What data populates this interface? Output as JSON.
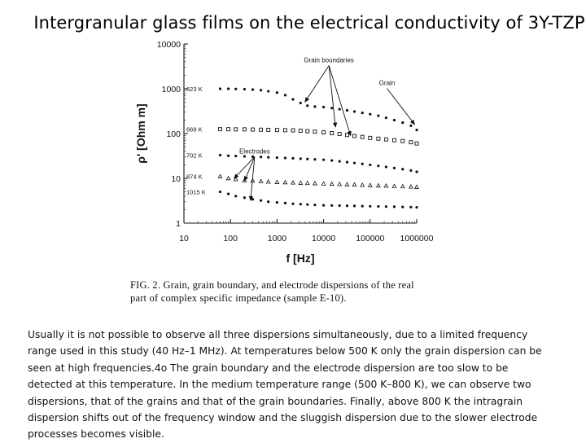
{
  "slide": {
    "title": "Intergranular glass films on the electrical conductivity of 3Y-TZP"
  },
  "figure": {
    "caption_lines": [
      "FIG. 2.  Grain, grain boundary, and electrode dispersions of the real",
      "part of complex specific impedance (sample E-10)."
    ]
  },
  "chart_data": {
    "type": "scatter",
    "xlabel": "f [Hz]",
    "ylabel": "ρ′  [Ohm m]",
    "x_scale": "log",
    "y_scale": "log",
    "xlim": [
      10,
      1000000
    ],
    "ylim": [
      1,
      10000
    ],
    "x_ticks": [
      {
        "value": 10,
        "label": "10"
      },
      {
        "value": 100,
        "label": "100"
      },
      {
        "value": 1000,
        "label": "1000"
      },
      {
        "value": 10000,
        "label": "10000"
      },
      {
        "value": 100000,
        "label": "100000"
      },
      {
        "value": 1000000,
        "label": "1000000"
      }
    ],
    "y_ticks": [
      {
        "value": 1,
        "label": "1"
      },
      {
        "value": 10,
        "label": "10"
      },
      {
        "value": 100,
        "label": "100"
      },
      {
        "value": 1000,
        "label": "1000"
      },
      {
        "value": 10000,
        "label": "10000"
      }
    ],
    "series": [
      {
        "name": "623 K",
        "marker": "dot",
        "x": [
          60,
          90,
          130,
          200,
          300,
          450,
          650,
          1000,
          1500,
          2200,
          3200,
          4500,
          6500,
          10000,
          15000,
          22000,
          32000,
          46000,
          68000,
          100000,
          150000,
          220000,
          330000,
          500000,
          750000,
          1000000
        ],
        "y": [
          1000,
          1000,
          990,
          980,
          960,
          930,
          880,
          820,
          720,
          580,
          480,
          420,
          400,
          390,
          370,
          350,
          330,
          310,
          290,
          270,
          250,
          225,
          200,
          175,
          150,
          120
        ]
      },
      {
        "name": "669 K",
        "marker": "square",
        "x": [
          60,
          90,
          130,
          200,
          300,
          450,
          650,
          1000,
          1500,
          2200,
          3200,
          4500,
          6500,
          10000,
          15000,
          22000,
          32000,
          46000,
          68000,
          100000,
          150000,
          220000,
          330000,
          500000,
          750000,
          1000000
        ],
        "y": [
          125,
          125,
          124,
          124,
          123,
          122,
          121,
          120,
          119,
          118,
          116,
          113,
          110,
          106,
          102,
          98,
          93,
          88,
          84,
          80,
          77,
          74,
          71,
          68,
          64,
          60
        ]
      },
      {
        "name": "702 K",
        "marker": "dot",
        "x": [
          60,
          90,
          130,
          200,
          300,
          450,
          650,
          1000,
          1500,
          2200,
          3200,
          4500,
          6500,
          10000,
          15000,
          22000,
          32000,
          46000,
          68000,
          100000,
          150000,
          220000,
          330000,
          500000,
          750000,
          1000000
        ],
        "y": [
          33,
          32,
          31.5,
          31,
          30.5,
          30,
          29.5,
          29,
          28.5,
          28,
          27.5,
          27,
          26.5,
          26,
          25,
          24,
          23,
          22,
          21,
          20,
          19,
          18,
          17,
          16,
          15,
          14
        ]
      },
      {
        "name": "874 K",
        "marker": "triangle",
        "x": [
          60,
          90,
          130,
          200,
          300,
          450,
          650,
          1000,
          1500,
          2200,
          3200,
          4500,
          6500,
          10000,
          15000,
          22000,
          32000,
          46000,
          68000,
          100000,
          150000,
          220000,
          330000,
          500000,
          750000,
          1000000
        ],
        "y": [
          11,
          10,
          9.5,
          9,
          8.8,
          8.6,
          8.4,
          8.2,
          8.1,
          8,
          7.9,
          7.8,
          7.7,
          7.6,
          7.5,
          7.4,
          7.3,
          7.2,
          7.1,
          7.0,
          6.9,
          6.8,
          6.7,
          6.6,
          6.5,
          6.4
        ]
      },
      {
        "name": "1015 K",
        "marker": "dot",
        "x": [
          60,
          90,
          130,
          200,
          300,
          450,
          650,
          1000,
          1500,
          2200,
          3200,
          4500,
          6500,
          10000,
          15000,
          22000,
          32000,
          46000,
          68000,
          100000,
          150000,
          220000,
          330000,
          500000,
          750000,
          1000000
        ],
        "y": [
          5,
          4.5,
          4,
          3.7,
          3.4,
          3.2,
          3.0,
          2.9,
          2.8,
          2.7,
          2.65,
          2.6,
          2.55,
          2.5,
          2.48,
          2.46,
          2.44,
          2.42,
          2.4,
          2.38,
          2.36,
          2.34,
          2.32,
          2.3,
          2.28,
          2.25
        ]
      }
    ],
    "annotations": [
      {
        "text": "Grain boundaries",
        "label_at": [
          13000,
          3900
        ],
        "arrows_to": [
          [
            4000,
            510
          ],
          [
            18000,
            140
          ],
          [
            38000,
            90
          ]
        ]
      },
      {
        "text": "Grain",
        "label_at": [
          230000,
          1200
        ],
        "arrows_to": [
          [
            900000,
            160
          ]
        ]
      },
      {
        "text": "Electrodes",
        "label_at": [
          330,
          36
        ],
        "arrows_to": [
          [
            120,
            10
          ],
          [
            200,
            8.8
          ],
          [
            270,
            3.2
          ]
        ]
      }
    ]
  },
  "body": {
    "lines": [
      "Usually it is not possible to observe all three dispersions simultaneously, due to a limited frequency",
      "range used in this study (40 Hz–1 MHz). At temperatures below 500 K only the grain dispersion can be",
      "seen at high frequencies.4o The grain boundary and the electrode dispersion are too slow to be",
      "detected at this temperature. In the medium temperature range (500 K–800 K), we can observe two",
      "dispersions, that of the grains and that of the grain boundaries. Finally, above 800 K the intragrain",
      "dispersion shifts out of the frequency window and the sluggish dispersion due to the slower electrode",
      "processes becomes visible."
    ]
  }
}
